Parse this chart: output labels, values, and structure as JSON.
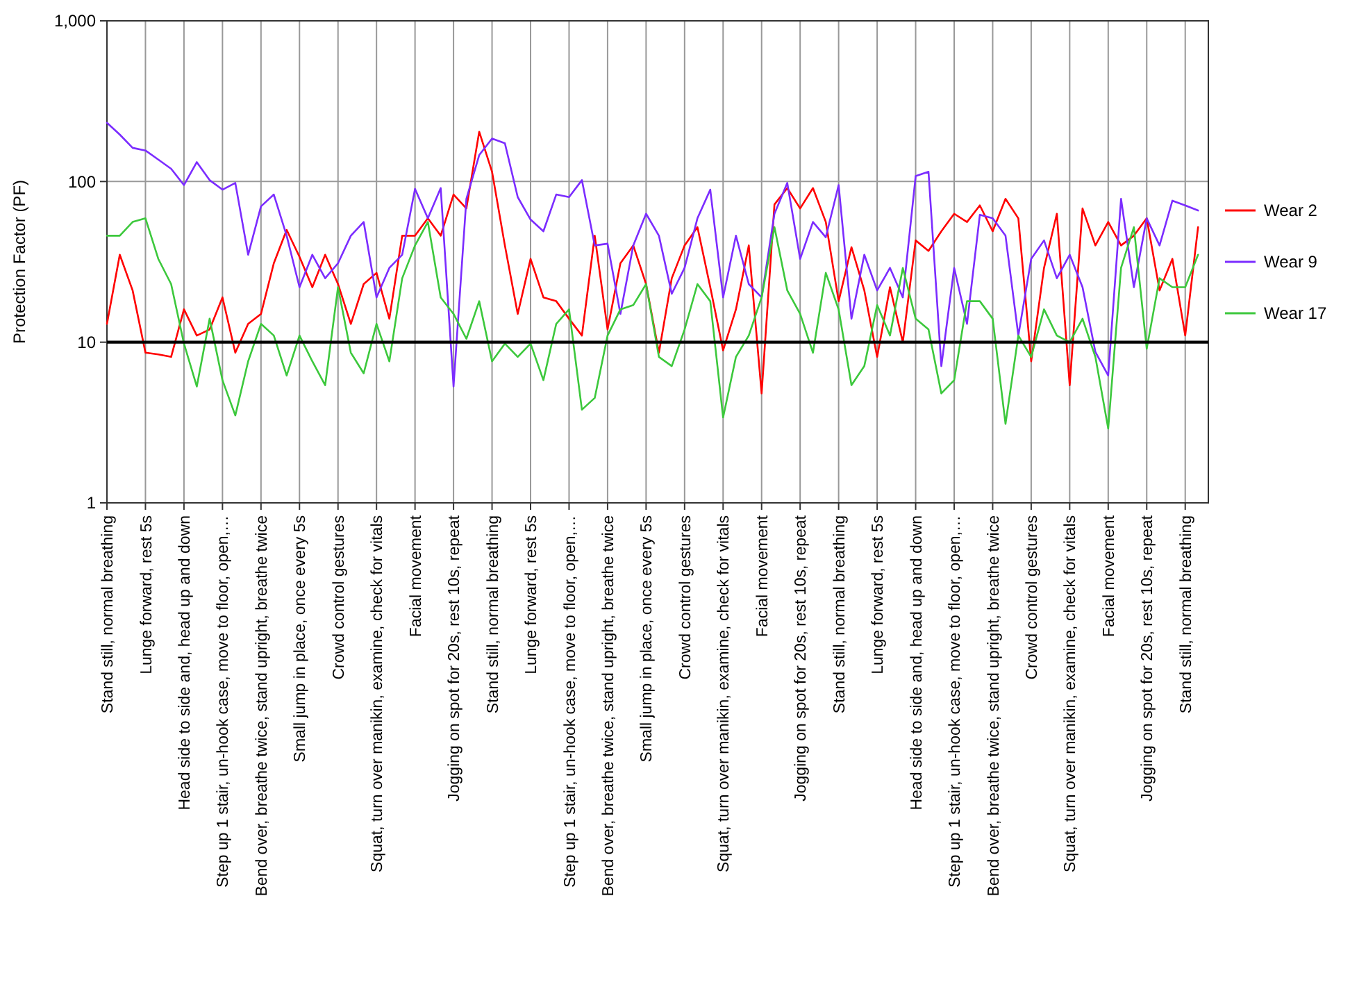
{
  "chart_data": {
    "type": "line",
    "ylabel": "Protection Factor (PF)",
    "log": true,
    "grid": true,
    "legend": "right",
    "line_style": "solid",
    "ylim": [
      1,
      1000
    ],
    "yticks": [
      1,
      10,
      100,
      {
        "value": 1000,
        "label": "1,000"
      }
    ],
    "categories": [
      "Stand still, normal breathing",
      null,
      null,
      "Lunge forward, rest 5s",
      null,
      null,
      "Head side to side and, head up and down",
      null,
      null,
      "Step up 1 stair, un-hook case, move to floor, open,…",
      null,
      null,
      "Bend over, breathe twice, stand upright, breathe twice",
      null,
      null,
      "Small jump in place, once every 5s",
      null,
      null,
      "Crowd control gestures",
      null,
      null,
      "Squat, turn over manikin, examine, check for vitals",
      null,
      null,
      "Facial movement",
      null,
      null,
      "Jogging on spot for 20s, rest 10s, repeat",
      null,
      null,
      "Stand still, normal breathing",
      null,
      null,
      "Lunge forward, rest 5s",
      null,
      null,
      "Step up 1 stair, un-hook case, move to floor, open,…",
      null,
      null,
      "Bend over, breathe twice, stand upright, breathe twice",
      null,
      null,
      "Small jump in place, once every 5s",
      null,
      null,
      "Crowd control gestures",
      null,
      null,
      "Squat, turn over manikin, examine, check for vitals",
      null,
      null,
      "Facial movement",
      null,
      null,
      "Jogging on spot for 20s, rest 10s, repeat",
      null,
      null,
      "Stand still, normal breathing",
      null,
      null,
      "Lunge forward, rest 5s",
      null,
      null,
      "Head side to side and, head up and down",
      null,
      null,
      "Step up 1 stair, un-hook case, move to floor, open,…",
      null,
      null,
      "Bend over, breathe twice, stand upright, breathe twice",
      null,
      null,
      "Crowd control gestures",
      null,
      null,
      "Squat, turn over manikin, examine, check for vitals",
      null,
      null,
      "Facial movement",
      null,
      null,
      "Jogging on spot for 20s, rest 10s, repeat",
      null,
      null,
      "Stand still, normal breathing",
      null
    ],
    "ref_lines": [
      {
        "axis": "y",
        "value": 10,
        "color": "#000000"
      }
    ],
    "series": [
      {
        "name": "Wear 2",
        "color": "#ff0000",
        "values": [
          13,
          35,
          21,
          8.6,
          8.4,
          8.1,
          16,
          11,
          12,
          19,
          8.6,
          13,
          15,
          31,
          50,
          34,
          22,
          35,
          23,
          13,
          23,
          27,
          14,
          46,
          46,
          59,
          46,
          83,
          68,
          204,
          115,
          40,
          15,
          33,
          19,
          18,
          14,
          11,
          46,
          12,
          31,
          40,
          23,
          8.6,
          25,
          40,
          52,
          22,
          8.9,
          16,
          40,
          4.8,
          72,
          91,
          68,
          91,
          56,
          18,
          39,
          21,
          8.1,
          22,
          10,
          43,
          37,
          49,
          63,
          56,
          71,
          49,
          78,
          59,
          7.6,
          29,
          63,
          5.4,
          68,
          40,
          56,
          40,
          46,
          59,
          21,
          33,
          11,
          52
        ]
      },
      {
        "name": "Wear 9",
        "color": "#7b2cff",
        "values": [
          232,
          196,
          162,
          156,
          137,
          120,
          95,
          132,
          102,
          89,
          98,
          35,
          70,
          83,
          46,
          22,
          35,
          25,
          31,
          46,
          56,
          19,
          29,
          35,
          90,
          59,
          91,
          5.3,
          78,
          146,
          185,
          173,
          80,
          58,
          49,
          83,
          80,
          102,
          40,
          41,
          15,
          40,
          63,
          46,
          20,
          29,
          59,
          89,
          19,
          46,
          23,
          19,
          63,
          98,
          33,
          56,
          45,
          95,
          14,
          35,
          21,
          29,
          19,
          108,
          115,
          7.1,
          29,
          13,
          62,
          59,
          46,
          11,
          33,
          43,
          25,
          35,
          22,
          8.7,
          6.2,
          78,
          22,
          59,
          40,
          76,
          71,
          66
        ]
      },
      {
        "name": "Wear 17",
        "color": "#3cc83c",
        "values": [
          46,
          46,
          56,
          59,
          33,
          23,
          9.8,
          5.3,
          14,
          5.8,
          3.5,
          7.6,
          13,
          11,
          6.2,
          11,
          7.6,
          5.4,
          22,
          8.6,
          6.4,
          13,
          7.6,
          25,
          40,
          56,
          19,
          15,
          10.5,
          18,
          7.6,
          9.8,
          8.1,
          9.8,
          5.8,
          13,
          16,
          3.8,
          4.5,
          11,
          16,
          17,
          23,
          8.1,
          7.1,
          12,
          23,
          18,
          3.4,
          8.1,
          11,
          19,
          52,
          21,
          15,
          8.6,
          27,
          16,
          5.4,
          7.1,
          17,
          11,
          29,
          14,
          12,
          4.8,
          5.8,
          18,
          18,
          14,
          3.1,
          11,
          8.1,
          16,
          11,
          10,
          14,
          8.1,
          2.9,
          29,
          52,
          9.1,
          25,
          22,
          22,
          35
        ]
      }
    ]
  }
}
